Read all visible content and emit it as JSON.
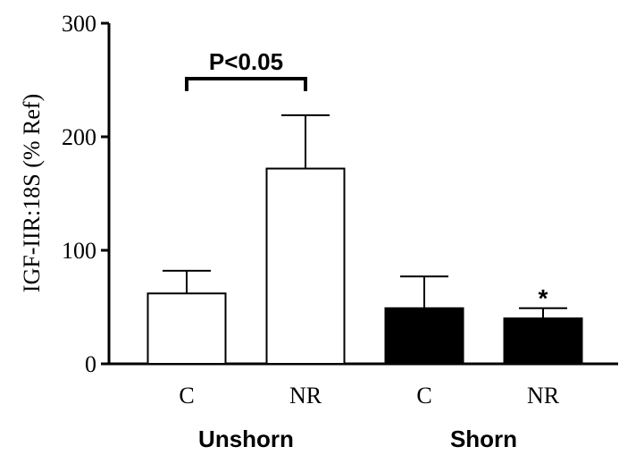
{
  "chart_data": {
    "type": "bar",
    "ylabel": "IGF-IIR:18S (% Ref)",
    "ylim": [
      0,
      300
    ],
    "yticks": [
      0,
      100,
      200,
      300
    ],
    "categories": [
      "C",
      "NR",
      "C",
      "NR"
    ],
    "groups": [
      {
        "label": "Unshorn",
        "start": 0,
        "end": 1
      },
      {
        "label": "Shorn",
        "start": 2,
        "end": 3
      }
    ],
    "values": [
      62,
      172,
      49,
      40
    ],
    "errors": [
      20,
      47,
      28,
      9
    ],
    "fill": [
      "#ffffff",
      "#ffffff",
      "#000000",
      "#000000"
    ],
    "significance": {
      "from": 0,
      "to": 1,
      "label": "P<0.05"
    },
    "marker": {
      "index": 3,
      "label": "*"
    }
  }
}
